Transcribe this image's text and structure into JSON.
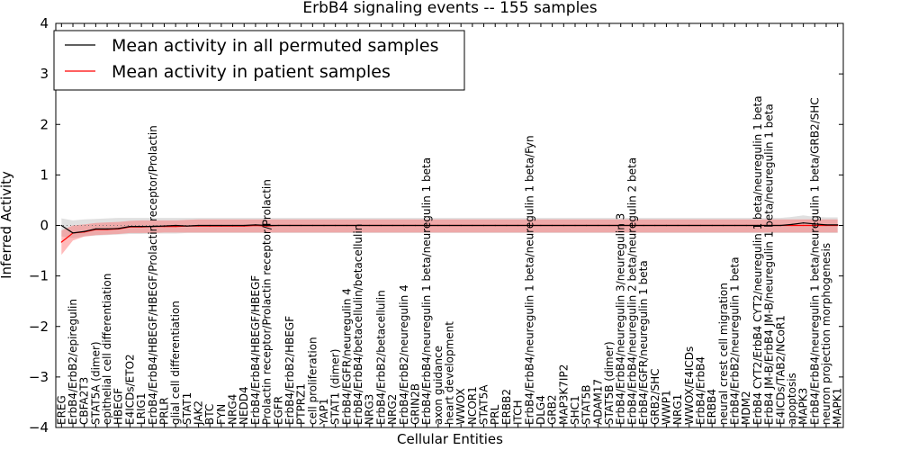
{
  "chart_data": {
    "type": "line",
    "title": "ErbB4 signaling events -- 155 samples",
    "xlabel": "Cellular Entities",
    "ylabel": "Inferred Activity",
    "ylim": [
      -4,
      4
    ],
    "yticks": [
      -4,
      -3,
      -2,
      -1,
      0,
      1,
      2,
      3,
      4
    ],
    "ytick_labels": [
      "−4",
      "−3",
      "−2",
      "−1",
      "0",
      "1",
      "2",
      "3",
      "4"
    ],
    "legend": {
      "placement": "top-left",
      "entries": [
        {
          "label": "Mean activity in all permuted samples",
          "color": "#000000"
        },
        {
          "label": "Mean activity in patient samples",
          "color": "#ff0000"
        }
      ]
    },
    "categories": [
      "EREG",
      "ErbB4/ErbB2/epiregulin",
      "CBFA2T3",
      "STAT5A (dimer)",
      "epithelial cell differentiation",
      "HBEGF",
      "E4ICDs/ETO2",
      "LRIG1",
      "ErbB4/ErbB4/HBEGF/HBEGF/Prolactin receptor/Prolactin",
      "PRLR",
      "glial cell differentiation",
      "STAT1",
      "JAK2",
      "BTC",
      "FYN",
      "NRG4",
      "NEDD4",
      "ErbB4/ErbB4/HBEGF/HBEGF",
      "Prolactin receptor/Prolactin receptor/Prolactin",
      "EGFR",
      "ErbB4/ErbB2/HBEGF",
      "PTPRZ1",
      "cell proliferation",
      "YAP1",
      "STAT1 (dimer)",
      "ErbB4/EGFR/neuregulin 4",
      "ErbB4/ErbB4/betacellulin/betacellulin",
      "NRG3",
      "ErbB4/ErbB2/betacellulin",
      "NRG2",
      "ErbB4/ErbB2/neuregulin 4",
      "GRIN2B",
      "ErbB4/ErbB4/neuregulin 1 beta/neuregulin 1 beta",
      "axon guidance",
      "heart development",
      "WWOX",
      "NCOR1",
      "STAT5A",
      "PRL",
      "ERBB2",
      "ITCH",
      "ErbB4/ErbB4/neuregulin 1 beta/neuregulin 1 beta/Fyn",
      "DLG4",
      "GRB2",
      "MAP3K7IP2",
      "SHC1",
      "STAT5B",
      "ADAM17",
      "STAT5B (dimer)",
      "ErbB4/ErbB4/neuregulin 3/neuregulin 3",
      "ErbB4/ErbB4/neuregulin 2 beta/neuregulin 2 beta",
      "ErbB4/EGFR/neuregulin 1 beta",
      "GRB2/SHC",
      "WWP1",
      "NRG1",
      "WWOX/E4ICDs",
      "ErbB4/ErbB4",
      "ERBB4",
      "neural crest cell migration",
      "ErbB4/ErbB2/neuregulin 1 beta",
      "MDM2",
      "ErbB4 CYT2/ErbB4 CYT2/neuregulin 1 beta/neuregulin 1 beta",
      "ErbB4 JM-B/ErbB4 JM-B/neuregulin 1 beta/neuregulin 1 beta",
      "E4ICDs/TAB2/NCoR1",
      "apoptosis",
      "MAPK3",
      "ErbB4/ErbB4/neuregulin 1 beta/neuregulin 1 beta/GRB2/SHC",
      "neuron projection morphogenesis",
      "MAPK1"
    ],
    "series": [
      {
        "name": "Mean activity in patient samples",
        "color": "#ff0000",
        "values": [
          -0.33,
          -0.15,
          -0.13,
          -0.08,
          -0.08,
          -0.07,
          -0.03,
          -0.03,
          -0.02,
          -0.02,
          -0.02,
          -0.01,
          -0.01,
          -0.01,
          -0.01,
          -0.01,
          -0.01,
          0.0,
          -0.01,
          0.0,
          0.0,
          0.0,
          0.0,
          0.0,
          0.0,
          0.0,
          0.0,
          0.0,
          0.0,
          0.0,
          0.0,
          0.0,
          0.0,
          0.0,
          0.0,
          0.0,
          0.0,
          0.0,
          0.0,
          0.0,
          0.0,
          0.0,
          0.0,
          0.0,
          0.0,
          0.0,
          0.0,
          0.0,
          0.0,
          0.0,
          0.0,
          0.0,
          0.0,
          0.0,
          0.0,
          0.0,
          0.0,
          0.0,
          0.0,
          0.0,
          0.0,
          0.0,
          0.0,
          0.0,
          0.0,
          0.0,
          0.0,
          0.0,
          0.0
        ]
      },
      {
        "name": "Mean activity in all permuted samples",
        "color": "#000000",
        "values": [
          0.0,
          -0.15,
          -0.12,
          -0.07,
          -0.07,
          -0.06,
          -0.02,
          -0.02,
          -0.02,
          -0.01,
          0.0,
          -0.01,
          0.0,
          0.0,
          0.0,
          0.0,
          0.0,
          0.01,
          0.0,
          0.0,
          0.0,
          0.0,
          0.0,
          0.0,
          0.0,
          0.0,
          0.0,
          0.0,
          0.0,
          0.0,
          0.0,
          0.0,
          0.0,
          0.0,
          0.0,
          0.0,
          0.0,
          0.0,
          0.0,
          0.0,
          0.0,
          0.0,
          0.0,
          0.0,
          0.0,
          0.0,
          0.0,
          0.0,
          0.0,
          0.0,
          0.0,
          0.0,
          0.0,
          0.0,
          0.0,
          0.0,
          0.0,
          0.0,
          0.0,
          0.0,
          0.0,
          0.0,
          0.0,
          0.0,
          0.02,
          0.05,
          0.03,
          0.01,
          0.01
        ]
      }
    ],
    "bands": [
      {
        "name": "patient-band",
        "color": "#ff6666",
        "lower": [
          -0.58,
          -0.3,
          -0.22,
          -0.19,
          -0.18,
          -0.17,
          -0.15,
          -0.15,
          -0.15,
          -0.14,
          -0.14,
          -0.14,
          -0.14,
          -0.14,
          -0.14,
          -0.14,
          -0.14,
          -0.14,
          -0.14,
          -0.14,
          -0.14,
          -0.14,
          -0.14,
          -0.14,
          -0.14,
          -0.14,
          -0.14,
          -0.14,
          -0.14,
          -0.14,
          -0.14,
          -0.14,
          -0.14,
          -0.14,
          -0.14,
          -0.14,
          -0.14,
          -0.14,
          -0.14,
          -0.14,
          -0.14,
          -0.14,
          -0.14,
          -0.14,
          -0.14,
          -0.14,
          -0.14,
          -0.14,
          -0.14,
          -0.14,
          -0.14,
          -0.14,
          -0.14,
          -0.14,
          -0.14,
          -0.14,
          -0.14,
          -0.14,
          -0.14,
          -0.14,
          -0.14,
          -0.14,
          -0.14,
          -0.14,
          -0.14,
          -0.14,
          -0.14,
          -0.14,
          -0.14
        ],
        "upper": [
          -0.1,
          0.0,
          0.02,
          0.05,
          0.06,
          0.07,
          0.09,
          0.1,
          0.1,
          0.1,
          0.1,
          0.11,
          0.12,
          0.12,
          0.12,
          0.12,
          0.12,
          0.12,
          0.12,
          0.12,
          0.12,
          0.12,
          0.12,
          0.12,
          0.12,
          0.12,
          0.12,
          0.12,
          0.12,
          0.12,
          0.12,
          0.12,
          0.12,
          0.12,
          0.12,
          0.12,
          0.12,
          0.12,
          0.12,
          0.12,
          0.12,
          0.12,
          0.12,
          0.12,
          0.12,
          0.12,
          0.12,
          0.12,
          0.12,
          0.12,
          0.12,
          0.12,
          0.12,
          0.12,
          0.12,
          0.12,
          0.12,
          0.12,
          0.12,
          0.12,
          0.12,
          0.12,
          0.12,
          0.12,
          0.12,
          0.12,
          0.12,
          0.12,
          0.12
        ]
      },
      {
        "name": "permuted-band",
        "color": "#bbbbbb",
        "lower": [
          -0.22,
          -0.25,
          -0.22,
          -0.2,
          -0.19,
          -0.18,
          -0.17,
          -0.17,
          -0.16,
          -0.16,
          -0.16,
          -0.15,
          -0.15,
          -0.15,
          -0.15,
          -0.15,
          -0.15,
          -0.15,
          -0.15,
          -0.15,
          -0.15,
          -0.15,
          -0.15,
          -0.15,
          -0.15,
          -0.15,
          -0.15,
          -0.15,
          -0.15,
          -0.15,
          -0.15,
          -0.15,
          -0.15,
          -0.15,
          -0.15,
          -0.15,
          -0.15,
          -0.15,
          -0.15,
          -0.15,
          -0.15,
          -0.15,
          -0.15,
          -0.15,
          -0.15,
          -0.15,
          -0.15,
          -0.15,
          -0.15,
          -0.15,
          -0.15,
          -0.15,
          -0.15,
          -0.15,
          -0.15,
          -0.15,
          -0.15,
          -0.15,
          -0.15,
          -0.15,
          -0.15,
          -0.15,
          -0.15,
          -0.15,
          -0.15,
          -0.15,
          -0.15,
          -0.15,
          -0.15
        ],
        "upper": [
          0.14,
          0.1,
          0.12,
          0.13,
          0.14,
          0.15,
          0.15,
          0.15,
          0.15,
          0.15,
          0.15,
          0.15,
          0.15,
          0.15,
          0.15,
          0.15,
          0.15,
          0.15,
          0.15,
          0.15,
          0.15,
          0.15,
          0.15,
          0.15,
          0.15,
          0.15,
          0.15,
          0.15,
          0.15,
          0.15,
          0.15,
          0.15,
          0.15,
          0.15,
          0.15,
          0.15,
          0.15,
          0.15,
          0.15,
          0.15,
          0.15,
          0.15,
          0.15,
          0.15,
          0.15,
          0.15,
          0.15,
          0.15,
          0.15,
          0.15,
          0.15,
          0.15,
          0.15,
          0.15,
          0.15,
          0.15,
          0.15,
          0.15,
          0.15,
          0.15,
          0.15,
          0.15,
          0.15,
          0.15,
          0.17,
          0.2,
          0.17,
          0.16,
          0.16
        ]
      }
    ]
  }
}
